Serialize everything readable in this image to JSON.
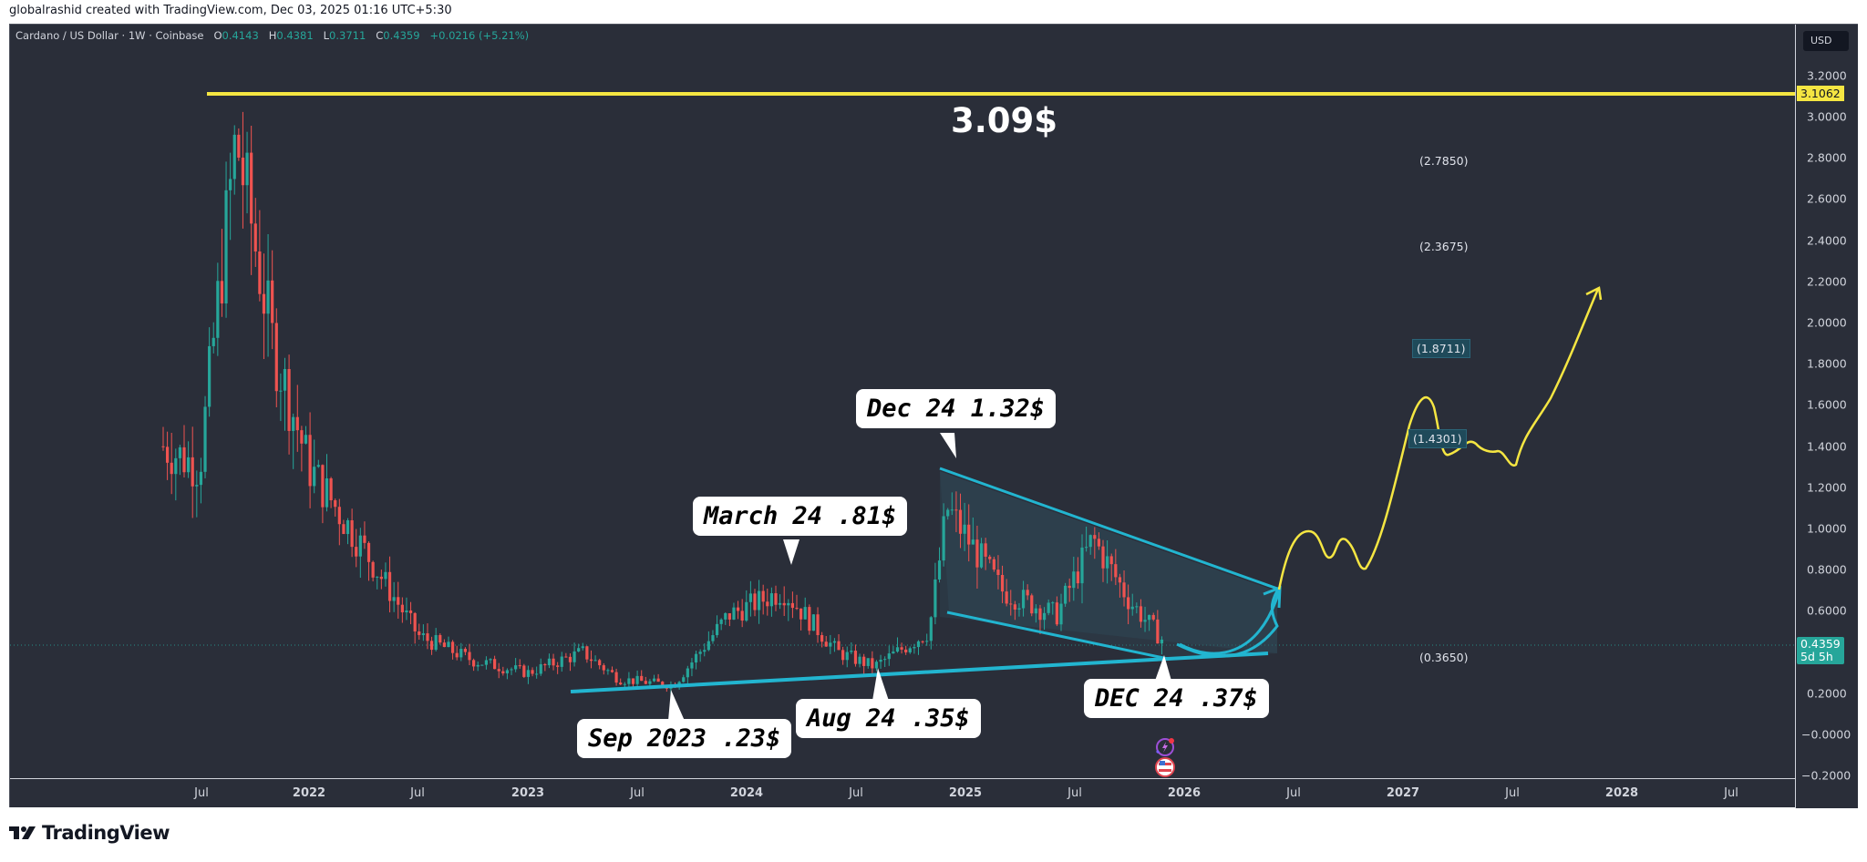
{
  "credit": "globalrashid created with TradingView.com, Dec 03, 2025 01:16 UTC+5:30",
  "legend": {
    "symbol": "Cardano / US Dollar · 1W · Coinbase",
    "o_label": "O",
    "o": "0.4143",
    "h_label": "H",
    "h": "0.4381",
    "l_label": "L",
    "l": "0.3711",
    "c_label": "C",
    "c": "0.4359",
    "change": "+0.0216 (+5.21%)"
  },
  "price_axis": {
    "currency": "USD",
    "ticks": [
      "3.2000",
      "3.0000",
      "2.8000",
      "2.6000",
      "2.4000",
      "2.2000",
      "2.0000",
      "1.8000",
      "1.6000",
      "1.4000",
      "1.2000",
      "1.0000",
      "0.8000",
      "0.6000",
      "0.2000",
      "−0.0000",
      "−0.2000"
    ],
    "ath_badge": "3.1062",
    "last_price": "0.4359",
    "countdown": "5d 5h"
  },
  "time_axis": [
    "Jul",
    "2022",
    "Jul",
    "2023",
    "Jul",
    "2024",
    "Jul",
    "2025",
    "Jul",
    "2026",
    "Jul",
    "2027",
    "Jul",
    "2028",
    "Jul"
  ],
  "annotations": {
    "ath": "3.09$",
    "sep2023": "Sep 2023 .23$",
    "mar24": "March 24 .81$",
    "aug24": "Aug 24 .35$",
    "dec24_high": "Dec 24 1.32$",
    "dec24_low": "DEC 24 .37$"
  },
  "fib_levels": [
    "(2.7850)",
    "(2.3675)",
    "(1.8711)",
    "(1.4301)",
    "(0.3650)"
  ],
  "brand": "TradingView",
  "colors": {
    "up": "#26a69a",
    "down": "#ef5350",
    "background": "#2a2e39",
    "trendline": "#22b5d0",
    "projection": "#f5e642",
    "ath_line": "#f5e642"
  },
  "chart_data": {
    "type": "candlestick",
    "title": "Cardano / US Dollar · 1W · Coinbase",
    "xlabel": "",
    "ylabel": "USD",
    "ylim": [
      -0.2,
      3.2
    ],
    "x_ticks": [
      "Jul 2021",
      "2022",
      "Jul 2022",
      "2023",
      "Jul 2023",
      "2024",
      "Jul 2024",
      "2025",
      "Jul 2025",
      "2026",
      "Jul 2026",
      "2027",
      "Jul 2027",
      "2028",
      "Jul 2028"
    ],
    "y_ticks": [
      -0.2,
      0.0,
      0.2,
      0.4,
      0.6,
      0.8,
      1.0,
      1.2,
      1.4,
      1.6,
      1.8,
      2.0,
      2.2,
      2.4,
      2.6,
      2.8,
      3.0,
      3.2
    ],
    "last_candle": {
      "open": 0.4143,
      "high": 0.4381,
      "low": 0.3711,
      "close": 0.4359,
      "change": 0.0216,
      "change_pct": 5.21
    },
    "key_points": [
      {
        "label": "ATH",
        "date": "2021-09",
        "price": 3.09
      },
      {
        "label": "Sep 2023",
        "price": 0.23
      },
      {
        "label": "March 24",
        "price": 0.81
      },
      {
        "label": "Aug 24",
        "price": 0.35
      },
      {
        "label": "Dec 24",
        "price": 1.32
      },
      {
        "label": "DEC 24",
        "price": 0.37
      }
    ],
    "horizontal_levels": [
      3.1062,
      2.785,
      2.3675,
      1.8711,
      1.4301,
      0.365
    ],
    "approx_series": {
      "dates": [
        "2021-05",
        "2021-07",
        "2021-09",
        "2021-11",
        "2022-01",
        "2022-04",
        "2022-07",
        "2022-10",
        "2023-01",
        "2023-04",
        "2023-06",
        "2023-09",
        "2023-12",
        "2024-03",
        "2024-06",
        "2024-08",
        "2024-11",
        "2024-12",
        "2025-03",
        "2025-06",
        "2025-08",
        "2025-10",
        "2025-12"
      ],
      "close": [
        1.4,
        1.3,
        2.9,
        1.9,
        1.3,
        0.9,
        0.48,
        0.36,
        0.3,
        0.4,
        0.27,
        0.24,
        0.58,
        0.7,
        0.4,
        0.33,
        0.5,
        1.1,
        0.7,
        0.58,
        0.95,
        0.65,
        0.44
      ]
    },
    "projection": {
      "description": "yellow path rising to ~2.05 by late 2027",
      "points": [
        [
          2026.3,
          0.72
        ],
        [
          2026.45,
          0.98
        ],
        [
          2026.6,
          0.85
        ],
        [
          2026.75,
          0.82
        ],
        [
          2027.0,
          1.55
        ],
        [
          2027.15,
          1.3
        ],
        [
          2027.4,
          1.26
        ],
        [
          2027.8,
          2.08
        ]
      ]
    }
  }
}
